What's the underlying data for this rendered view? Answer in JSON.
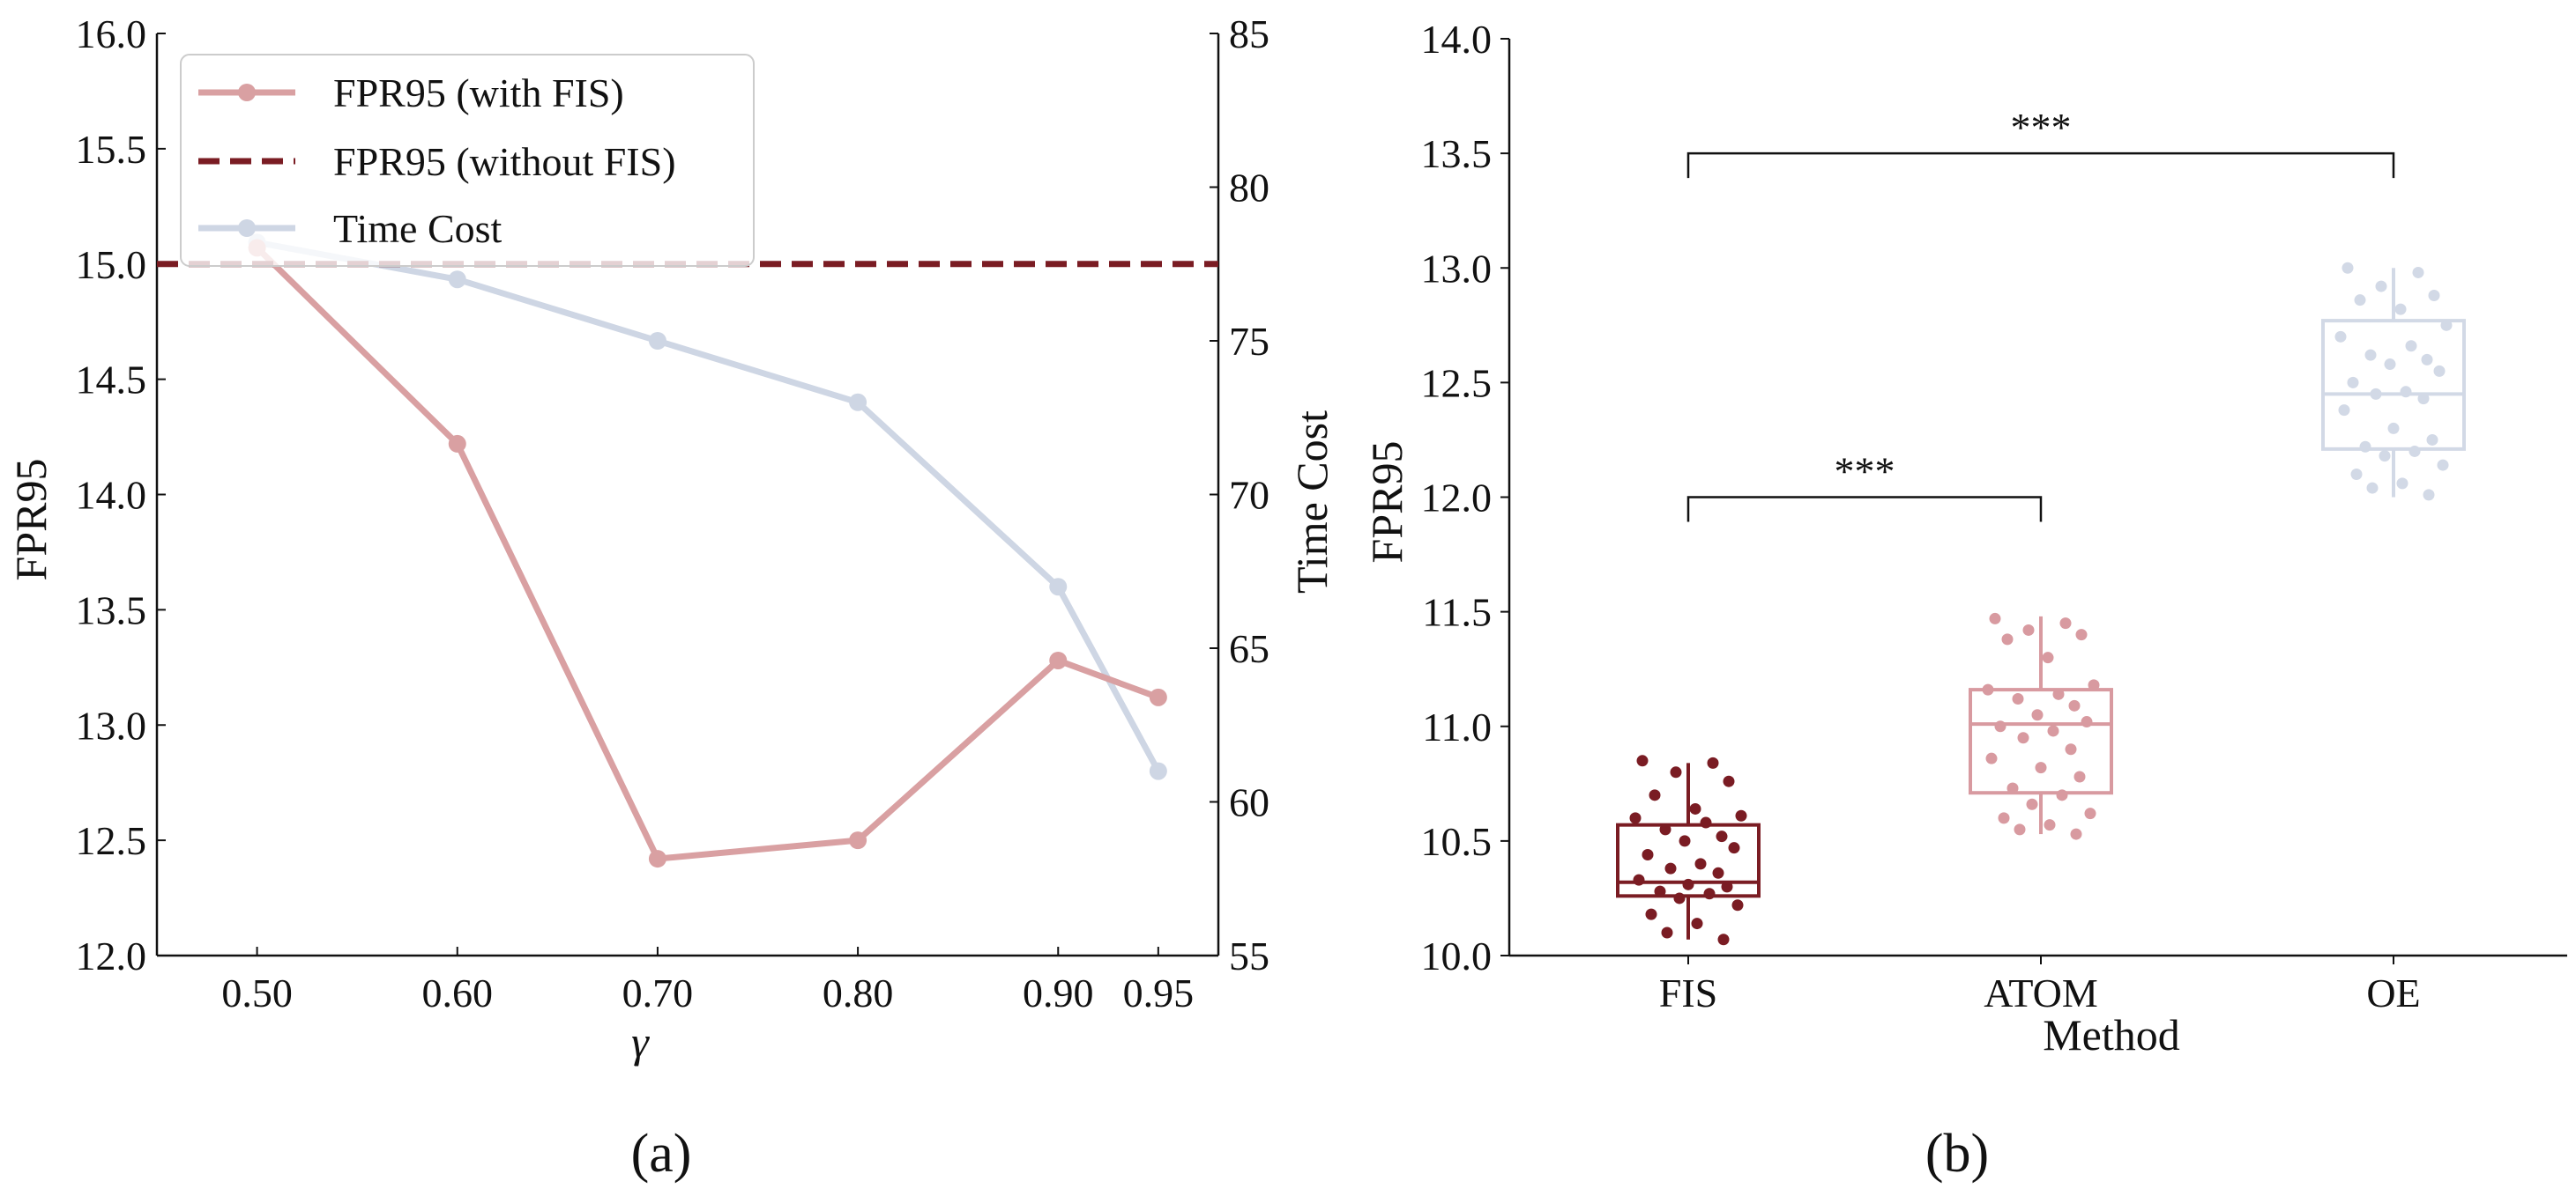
{
  "colors": {
    "fpr_with_fis": "#d9a0a2",
    "fpr_without_fis": "#7a1c23",
    "time_cost": "#ced6e4",
    "fis": "#7a1c23",
    "atom": "#d89aa0",
    "oe": "#d2d9e6",
    "axis": "#111111"
  },
  "panel_labels": {
    "a": "(a)",
    "b": "(b)"
  },
  "chart_data": [
    {
      "type": "line",
      "panel": "(a)",
      "xlabel": "γ",
      "ylabel": "FPR95",
      "y2label": "Time Cost",
      "x_tick_labels": [
        "0.50",
        "0.60",
        "0.70",
        "0.80",
        "0.90",
        "0.95"
      ],
      "x": [
        0.5,
        0.6,
        0.7,
        0.8,
        0.9,
        0.95
      ],
      "xlim": [
        0.45,
        0.98
      ],
      "ylim": [
        12.0,
        16.0
      ],
      "y_ticks": [
        "12.0",
        "12.5",
        "13.0",
        "13.5",
        "14.0",
        "14.5",
        "15.0",
        "15.5",
        "16.0"
      ],
      "y2lim": [
        55,
        85
      ],
      "y2_ticks": [
        "55",
        "60",
        "65",
        "70",
        "75",
        "80",
        "85"
      ],
      "legend_position": "upper-left",
      "series": [
        {
          "name": "FPR95 (with FIS)",
          "axis": "left",
          "style": "solid-marker",
          "values": [
            15.07,
            14.22,
            12.42,
            12.5,
            13.28,
            13.12
          ]
        },
        {
          "name": "FPR95 (without FIS)",
          "axis": "left",
          "style": "dashed",
          "values": [
            15.0,
            15.0,
            15.0,
            15.0,
            15.0,
            15.0
          ]
        },
        {
          "name": "Time Cost",
          "axis": "right",
          "style": "solid-marker",
          "values": [
            78.2,
            77.0,
            75.0,
            73.0,
            67.0,
            61.0
          ]
        }
      ]
    },
    {
      "type": "box",
      "panel": "(b)",
      "xlabel": "Method",
      "ylabel": "FPR95",
      "categories": [
        "FIS",
        "ATOM",
        "OE"
      ],
      "ylim": [
        10.0,
        14.0
      ],
      "y_ticks": [
        "10.0",
        "10.5",
        "11.0",
        "11.5",
        "12.0",
        "12.5",
        "13.0",
        "13.5",
        "14.0"
      ],
      "boxes": [
        {
          "name": "FIS",
          "whisker_low": 10.07,
          "q1": 10.26,
          "median": 10.32,
          "q3": 10.57,
          "whisker_high": 10.84
        },
        {
          "name": "ATOM",
          "whisker_low": 10.53,
          "q1": 10.71,
          "median": 11.01,
          "q3": 11.16,
          "whisker_high": 11.48
        },
        {
          "name": "OE",
          "whisker_low": 12.0,
          "q1": 12.21,
          "median": 12.45,
          "q3": 12.77,
          "whisker_high": 13.0
        }
      ],
      "points": {
        "FIS": [
          10.85,
          10.84,
          10.8,
          10.76,
          10.7,
          10.64,
          10.61,
          10.6,
          10.58,
          10.55,
          10.52,
          10.5,
          10.47,
          10.44,
          10.4,
          10.38,
          10.36,
          10.33,
          10.31,
          10.3,
          10.28,
          10.27,
          10.25,
          10.22,
          10.18,
          10.14,
          10.1,
          10.07
        ],
        "ATOM": [
          11.47,
          11.45,
          11.42,
          11.4,
          11.38,
          11.3,
          11.18,
          11.16,
          11.14,
          11.12,
          11.09,
          11.05,
          11.02,
          11.0,
          10.98,
          10.95,
          10.9,
          10.86,
          10.82,
          10.78,
          10.73,
          10.7,
          10.66,
          10.62,
          10.6,
          10.57,
          10.55,
          10.53
        ],
        "OE": [
          13.0,
          12.98,
          12.92,
          12.88,
          12.86,
          12.82,
          12.75,
          12.7,
          12.66,
          12.62,
          12.6,
          12.58,
          12.55,
          12.5,
          12.46,
          12.45,
          12.43,
          12.38,
          12.3,
          12.25,
          12.22,
          12.2,
          12.18,
          12.14,
          12.1,
          12.06,
          12.04,
          12.01
        ]
      },
      "significance": [
        {
          "from": "FIS",
          "to": "ATOM",
          "level": 12.0,
          "label": "***"
        },
        {
          "from": "FIS",
          "to": "OE",
          "level": 13.5,
          "label": "***"
        }
      ]
    }
  ]
}
